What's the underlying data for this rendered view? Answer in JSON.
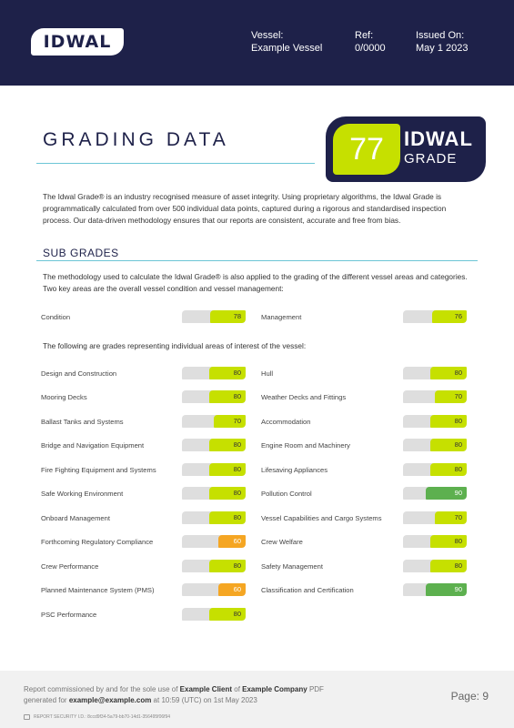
{
  "header": {
    "logo_text": "IDWAL",
    "vessel_label": "Vessel:",
    "vessel_value": "Example Vessel",
    "ref_label": "Ref:",
    "ref_value": "0/0000",
    "issued_label": "Issued On:",
    "issued_value": "May 1 2023"
  },
  "title": "GRADING DATA",
  "badge": {
    "grade": "77",
    "line1": "IDWAL",
    "line2": "GRADE"
  },
  "intro": "The Idwal Grade® is an industry recognised measure of asset integrity. Using proprietary algorithms, the Idwal Grade is programmatically calculated from over 500 individual data points, captured during a rigorous and standardised inspection process. Our data-driven methodology ensures that our reports are consistent, accurate and free from bias.",
  "sub_grades_title": "SUB GRADES",
  "methodology": "The methodology used to calculate the Idwal Grade® is also applied to the grading of the different vessel areas and categories. Two key areas are the overall vessel condition and vessel management:",
  "areas_intro": "The following are grades representing individual areas of interest of the vessel:",
  "colors": {
    "navy": "#1e2149",
    "green": "#c6e000",
    "orange": "#f5a623",
    "dark_green": "#5db04f",
    "gray": "#dedede"
  },
  "key_grades": [
    {
      "label": "Condition",
      "value": 78,
      "status": "green"
    },
    {
      "label": "Management",
      "value": 76,
      "status": "green"
    }
  ],
  "left_grades": [
    {
      "label": "Design and Construction",
      "value": 80,
      "status": "green"
    },
    {
      "label": "Mooring Decks",
      "value": 80,
      "status": "green"
    },
    {
      "label": "Ballast Tanks and Systems",
      "value": 70,
      "status": "green"
    },
    {
      "label": "Bridge and Navigation Equipment",
      "value": 80,
      "status": "green"
    },
    {
      "label": "Fire Fighting Equipment and Systems",
      "value": 80,
      "status": "green"
    },
    {
      "label": "Safe Working Environment",
      "value": 80,
      "status": "green"
    },
    {
      "label": "Onboard Management",
      "value": 80,
      "status": "green"
    },
    {
      "label": "Forthcoming Regulatory Compliance",
      "value": 60,
      "status": "orange"
    },
    {
      "label": "Crew Performance",
      "value": 80,
      "status": "green"
    },
    {
      "label": "Planned Maintenance System (PMS)",
      "value": 60,
      "status": "orange"
    },
    {
      "label": "PSC Performance",
      "value": 80,
      "status": "green"
    }
  ],
  "right_grades": [
    {
      "label": "Hull",
      "value": 80,
      "status": "green"
    },
    {
      "label": "Weather Decks and Fittings",
      "value": 70,
      "status": "green"
    },
    {
      "label": "Accommodation",
      "value": 80,
      "status": "green"
    },
    {
      "label": "Engine Room and Machinery",
      "value": 80,
      "status": "green"
    },
    {
      "label": "Lifesaving Appliances",
      "value": 80,
      "status": "green"
    },
    {
      "label": "Pollution Control",
      "value": 90,
      "status": "dark_green"
    },
    {
      "label": "Vessel Capabilities and Cargo Systems",
      "value": 70,
      "status": "green"
    },
    {
      "label": "Crew Welfare",
      "value": 80,
      "status": "green"
    },
    {
      "label": "Safety Management",
      "value": 80,
      "status": "green"
    },
    {
      "label": "Classification and Certification",
      "value": 90,
      "status": "dark_green"
    }
  ],
  "footer": {
    "text_1": "Report commissioned by and for the sole use of ",
    "client": "Example Client",
    "text_2": " of ",
    "company": "Example Company",
    "text_3": " PDF generated for ",
    "email": "example@example.com",
    "text_4": " at 10:59 (UTC) on 1st May 2023",
    "page": "Page: 9",
    "security": "REPORT SECURITY I.D.: 8ccd9f34-5a79-bb70-14d1-356495f06f94"
  }
}
